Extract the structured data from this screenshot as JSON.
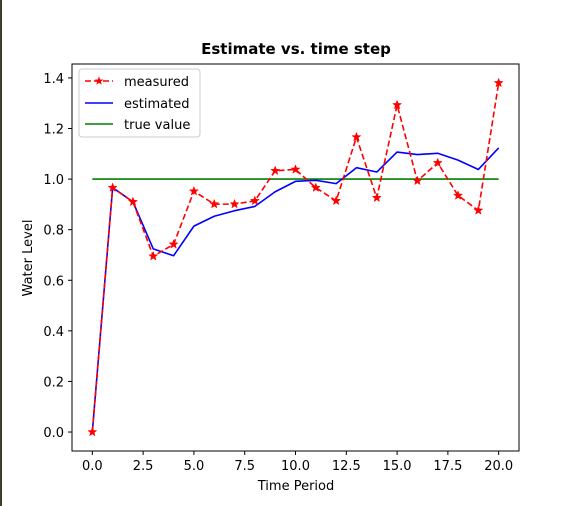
{
  "chart_data": {
    "type": "line",
    "title": "Estimate vs. time step",
    "xlabel": "Time Period",
    "ylabel": "Water Level",
    "xlim": [
      -1.0,
      21.0
    ],
    "ylim": [
      -0.075,
      1.455
    ],
    "x_ticks": [
      0.0,
      2.5,
      5.0,
      7.5,
      10.0,
      12.5,
      15.0,
      17.5,
      20.0
    ],
    "x_tick_labels": [
      "0.0",
      "2.5",
      "5.0",
      "7.5",
      "10.0",
      "12.5",
      "15.0",
      "17.5",
      "20.0"
    ],
    "y_ticks": [
      0.0,
      0.2,
      0.4,
      0.6,
      0.8,
      1.0,
      1.2,
      1.4
    ],
    "y_tick_labels": [
      "0.0",
      "0.2",
      "0.4",
      "0.6",
      "0.8",
      "1.0",
      "1.2",
      "1.4"
    ],
    "grid": false,
    "legend_position": "top-left",
    "series": [
      {
        "name": "measured",
        "color": "#ff0000",
        "style": "dashed",
        "marker": "star",
        "x": [
          0,
          1,
          2,
          3,
          4,
          5,
          6,
          7,
          8,
          9,
          10,
          11,
          12,
          13,
          14,
          15,
          16,
          17,
          18,
          19,
          20
        ],
        "y": [
          0.0,
          0.966,
          0.91,
          0.695,
          0.742,
          0.952,
          0.901,
          0.901,
          0.914,
          1.033,
          1.038,
          0.966,
          0.914,
          1.166,
          0.926,
          1.293,
          0.993,
          1.064,
          0.935,
          0.876,
          1.38
        ]
      },
      {
        "name": "estimated",
        "color": "#0000ff",
        "style": "solid",
        "marker": "none",
        "x": [
          0,
          1,
          2,
          3,
          4,
          5,
          6,
          7,
          8,
          9,
          10,
          11,
          12,
          13,
          14,
          15,
          16,
          17,
          18,
          19,
          20
        ],
        "y": [
          0.0,
          0.966,
          0.91,
          0.724,
          0.697,
          0.814,
          0.853,
          0.875,
          0.892,
          0.95,
          0.991,
          0.995,
          0.982,
          1.045,
          1.028,
          1.107,
          1.097,
          1.102,
          1.075,
          1.038,
          1.123
        ]
      },
      {
        "name": "true value",
        "color": "#008000",
        "style": "solid",
        "marker": "none",
        "x": [
          0,
          20
        ],
        "y": [
          1.0,
          1.0
        ]
      }
    ]
  }
}
